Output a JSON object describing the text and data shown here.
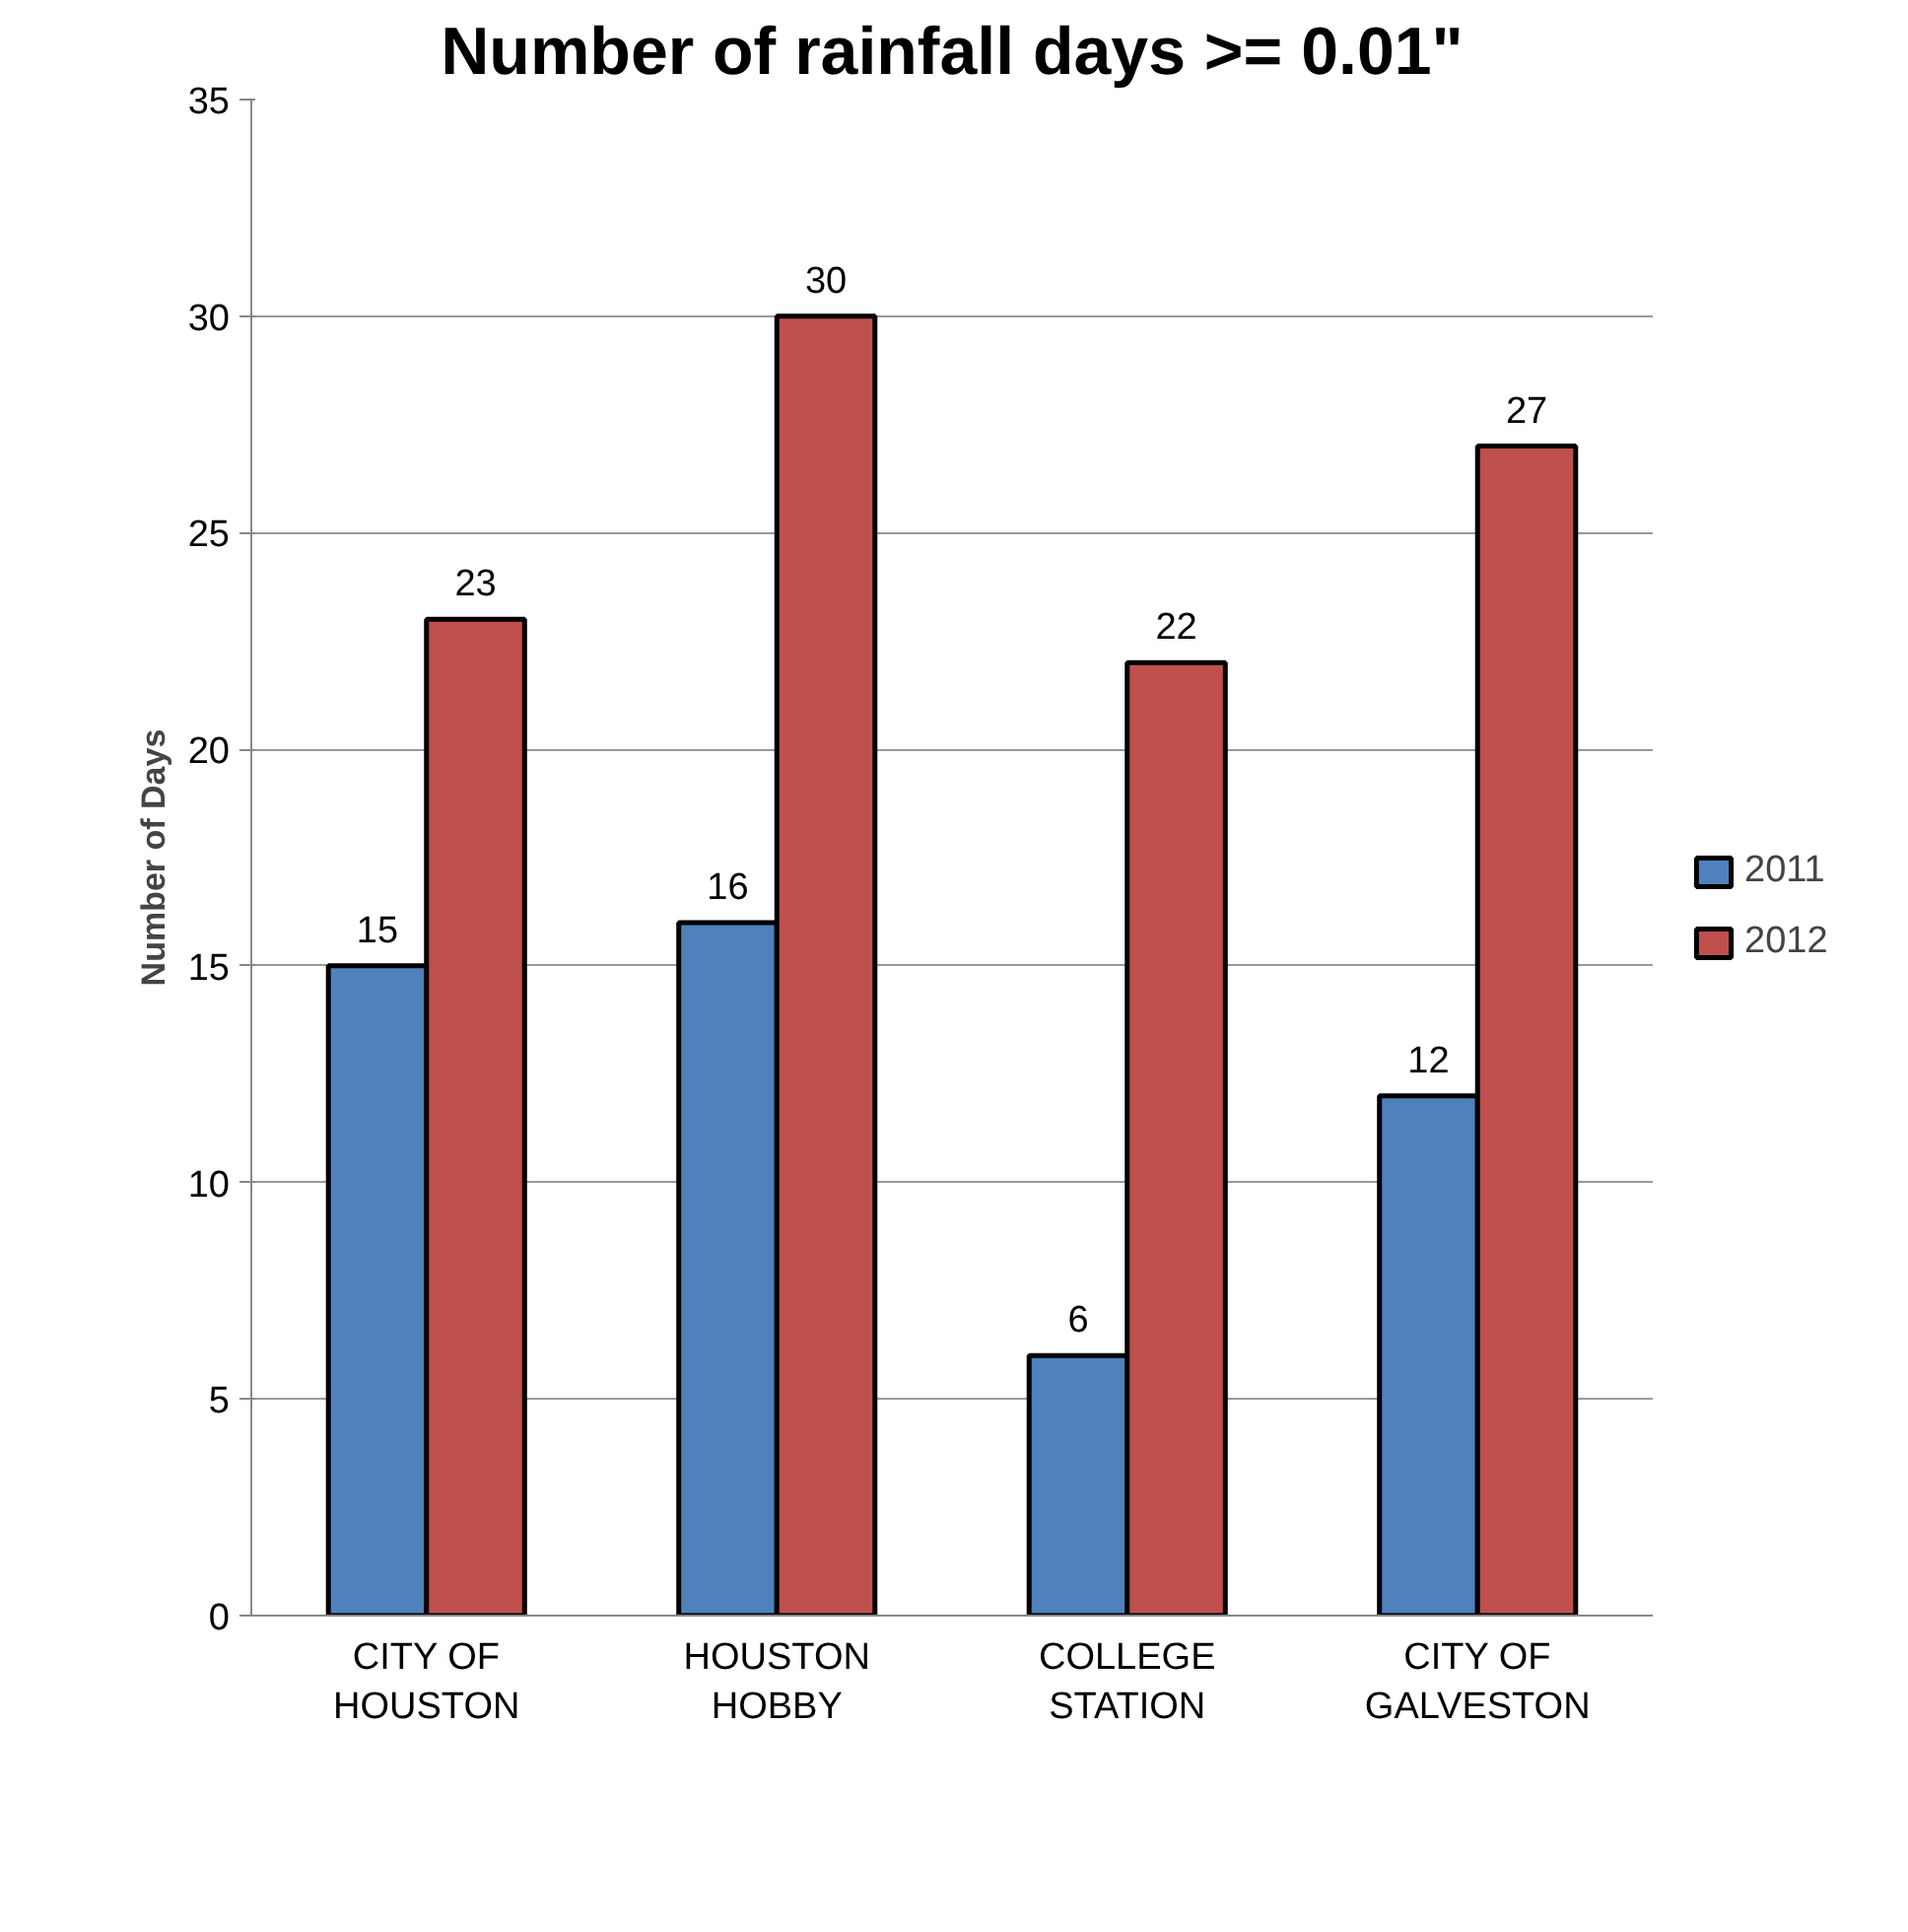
{
  "chart_data": {
    "type": "bar",
    "title": "Number of rainfall days >= 0.01\"",
    "ylabel": "Number of Days",
    "categories": [
      "CITY OF\nHOUSTON",
      "HOUSTON\nHOBBY",
      "COLLEGE\nSTATION",
      "CITY OF\nGALVESTON"
    ],
    "series": [
      {
        "name": "2011",
        "color": "#4f81bd",
        "values": [
          15,
          16,
          6,
          12
        ]
      },
      {
        "name": "2012",
        "color": "#c0504d",
        "values": [
          23,
          30,
          22,
          27
        ]
      }
    ],
    "ylim": [
      0,
      35
    ],
    "yticks": [
      0,
      5,
      10,
      15,
      20,
      25,
      30,
      35
    ],
    "grid": "y",
    "legend": "right",
    "data_labels": true
  }
}
